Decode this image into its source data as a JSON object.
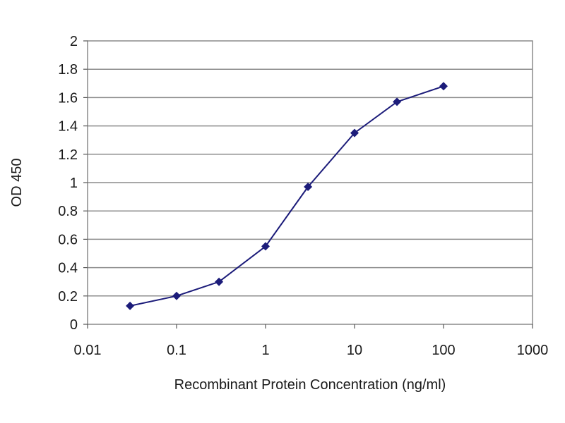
{
  "chart_data": {
    "type": "line",
    "title": "",
    "xlabel": "Recombinant Protein Concentration (ng/ml)",
    "ylabel": "OD 450",
    "x_scale": "log",
    "xlim": [
      0.01,
      1000
    ],
    "ylim": [
      0,
      2
    ],
    "x_ticks": [
      0.01,
      0.1,
      1,
      10,
      100,
      1000
    ],
    "x_tick_labels": [
      "0.01",
      "0.1",
      "1",
      "10",
      "100",
      "1000"
    ],
    "y_ticks": [
      0,
      0.2,
      0.4,
      0.6,
      0.8,
      1,
      1.2,
      1.4,
      1.6,
      1.8,
      2
    ],
    "y_tick_labels": [
      "0",
      "0.2",
      "0.4",
      "0.6",
      "0.8",
      "1",
      "1.2",
      "1.4",
      "1.6",
      "1.8",
      "2"
    ],
    "grid": "horizontal",
    "legend": "none",
    "series": [
      {
        "x": [
          0.03,
          0.1,
          0.3,
          1,
          3,
          10,
          30,
          100
        ],
        "values": [
          0.13,
          0.2,
          0.3,
          0.55,
          0.97,
          1.35,
          1.57,
          1.68
        ],
        "color": "#1c1c7a"
      }
    ]
  }
}
